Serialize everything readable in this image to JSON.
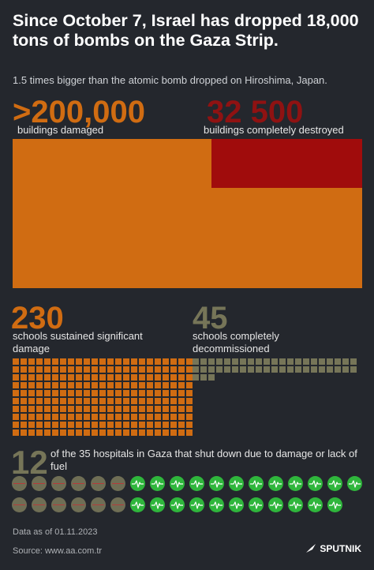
{
  "header": {
    "title": "Since October 7, Israel has dropped 18,000 tons of bombs on the Gaza Strip.",
    "subtitle": "1.5 times bigger than the atomic bomb dropped on Hiroshima, Japan."
  },
  "buildings": {
    "damaged_value": ">200,000",
    "damaged_caption": "buildings damaged",
    "destroyed_value": "32 500",
    "destroyed_caption": "buildings completely destroyed",
    "damaged_color": "#d06c12",
    "destroyed_color": "#a00c0c"
  },
  "schools": {
    "damaged_value": "230",
    "damaged_caption": "schools sustained significant damage",
    "damaged_count": 230,
    "decommissioned_value": "45",
    "decommissioned_caption": "schools completely decommissioned",
    "decommissioned_count": 45,
    "damaged_color": "#d06c12",
    "decommissioned_color": "#767558"
  },
  "hospitals": {
    "shut_value": "12",
    "caption": "of the 35 hospitals in Gaza that shut down due to damage or lack of fuel",
    "shut_count": 12,
    "total_count": 35,
    "closed_icon": "closed-hospital-icon",
    "open_icon": "heartbeat-icon",
    "open_color": "#2fb63c",
    "closed_color": "#6f6e55"
  },
  "footer": {
    "date_note": "Data as of 01.11.2023",
    "source": "Source: www.aa.com.tr",
    "logo_text": "SPUTNIK"
  }
}
